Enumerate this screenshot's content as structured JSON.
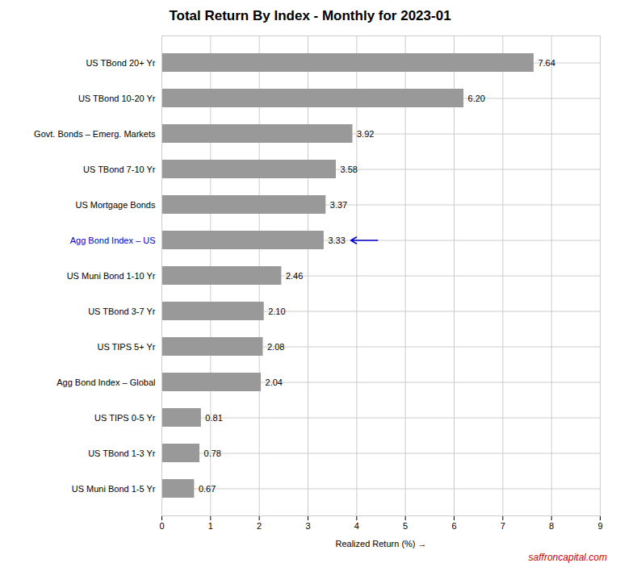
{
  "chart_data": {
    "type": "bar",
    "orientation": "horizontal",
    "title": "Total Return By Index - Monthly for 2023-01",
    "xlabel": "Realized Return (%)",
    "categories": [
      "US Muni Bond 1-5 Yr",
      "US TBond 1-3 Yr",
      "US TIPS 0-5 Yr",
      "Agg Bond Index – Global",
      "US TIPS 5+ Yr",
      "US TBond 3-7 Yr",
      "US Muni Bond 1-10 Yr",
      "Agg Bond Index – US",
      "US Mortgage Bonds",
      "US TBond 7-10 Yr",
      "Govt. Bonds – Emerg. Markets",
      "US TBond 10-20 Yr",
      "US TBond 20+ Yr"
    ],
    "values": [
      0.67,
      0.78,
      0.81,
      2.04,
      2.08,
      2.1,
      2.46,
      3.33,
      3.37,
      3.58,
      3.92,
      6.2,
      7.64
    ],
    "value_labels": [
      "0.67",
      "0.78",
      "0.81",
      "2.04",
      "2.08",
      "2.10",
      "2.46",
      "3.33",
      "3.37",
      "3.58",
      "3.92",
      "6.20",
      "7.64"
    ],
    "color": "#999999",
    "xlim": [
      0,
      9
    ],
    "xticks": [
      0,
      1,
      2,
      3,
      4,
      5,
      6,
      7,
      8,
      9
    ],
    "grid": true,
    "data_labels": true,
    "annotations": [
      {
        "type": "arrow",
        "category": "Agg Bond Index – US",
        "color": "#0000cc"
      },
      {
        "type": "text",
        "text": "saffroncapital.com",
        "color": "#cc0000"
      }
    ]
  }
}
